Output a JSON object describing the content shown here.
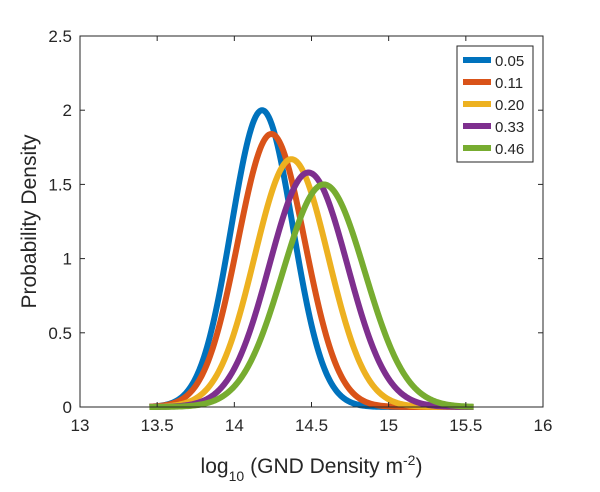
{
  "chart_data": {
    "type": "line",
    "title": "",
    "xlabel": {
      "main": "log",
      "subscript": "10",
      "text": "(GND Density m",
      "superscript": "-2",
      "close": ")"
    },
    "ylabel": "Probability Density",
    "xlim": [
      13,
      16
    ],
    "ylim": [
      0,
      2.5
    ],
    "x_ticks": [
      13,
      13.5,
      14,
      14.5,
      15,
      15.5,
      16
    ],
    "x_tick_labels": [
      "13",
      "13.5",
      "14",
      "14.5",
      "15",
      "15.5",
      "16"
    ],
    "y_ticks": [
      0,
      0.5,
      1,
      1.5,
      2,
      2.5
    ],
    "y_tick_labels": [
      "0",
      "0.5",
      "1",
      "1.5",
      "2",
      "2.5"
    ],
    "grid": false,
    "legend_position": "top-right",
    "x_range_of_curves": [
      13.45,
      15.55
    ],
    "series": [
      {
        "name": "0.05",
        "color": "#0072BD",
        "peak_x": 14.18,
        "peak_y": 2.0
      },
      {
        "name": "0.11",
        "color": "#D95319",
        "peak_x": 14.24,
        "peak_y": 1.84
      },
      {
        "name": "0.20",
        "color": "#EDB120",
        "peak_x": 14.37,
        "peak_y": 1.67
      },
      {
        "name": "0.33",
        "color": "#7E2F8E",
        "peak_x": 14.48,
        "peak_y": 1.58
      },
      {
        "name": "0.46",
        "color": "#77AC30",
        "peak_x": 14.58,
        "peak_y": 1.5
      }
    ]
  }
}
